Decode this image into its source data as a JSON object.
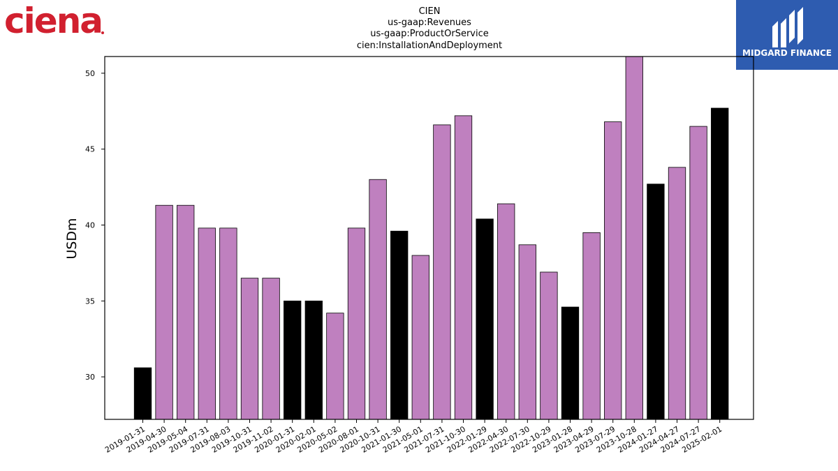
{
  "logos": {
    "left_text": "ciena",
    "right_text": "MIDGARD FINANCE"
  },
  "colors": {
    "bar_fill": "#bf80bf",
    "bar_highlight": "#000000",
    "bar_edge": "#000000",
    "ciena_red": "#d1202f",
    "midgard_blue": "#2e5cb0"
  },
  "chart_data": {
    "type": "bar",
    "title_lines": [
      "CIEN",
      "us-gaap:Revenues",
      "us-gaap:ProductOrService",
      "cien:InstallationAndDeployment"
    ],
    "ylabel": "USDm",
    "xlabel": "",
    "ylim": [
      27.2,
      51.1
    ],
    "yticks": [
      30,
      35,
      40,
      45,
      50
    ],
    "categories": [
      "2019-01-31",
      "2019-04-30",
      "2019-05-04",
      "2019-07-31",
      "2019-08-03",
      "2019-10-31",
      "2019-11-02",
      "2020-01-31",
      "2020-02-01",
      "2020-05-02",
      "2020-08-01",
      "2020-10-31",
      "2021-01-30",
      "2021-05-01",
      "2021-07-31",
      "2021-10-30",
      "2022-01-29",
      "2022-04-30",
      "2022-07-30",
      "2022-10-29",
      "2023-01-28",
      "2023-04-29",
      "2023-07-29",
      "2023-10-28",
      "2024-01-27",
      "2024-04-27",
      "2024-07-27",
      "2025-02-01"
    ],
    "values": [
      30.6,
      41.3,
      41.3,
      39.8,
      39.8,
      36.5,
      36.5,
      35.0,
      35.0,
      34.2,
      39.8,
      43.0,
      39.6,
      38.0,
      46.6,
      47.2,
      40.4,
      41.4,
      38.7,
      36.9,
      34.6,
      39.5,
      46.8,
      51.2,
      42.7,
      43.8,
      46.5,
      47.7
    ],
    "highlighted": [
      true,
      false,
      false,
      false,
      false,
      false,
      false,
      true,
      true,
      false,
      false,
      false,
      true,
      false,
      false,
      false,
      true,
      false,
      false,
      false,
      true,
      false,
      false,
      false,
      true,
      false,
      false,
      true
    ],
    "grid": false,
    "legend": "none"
  }
}
